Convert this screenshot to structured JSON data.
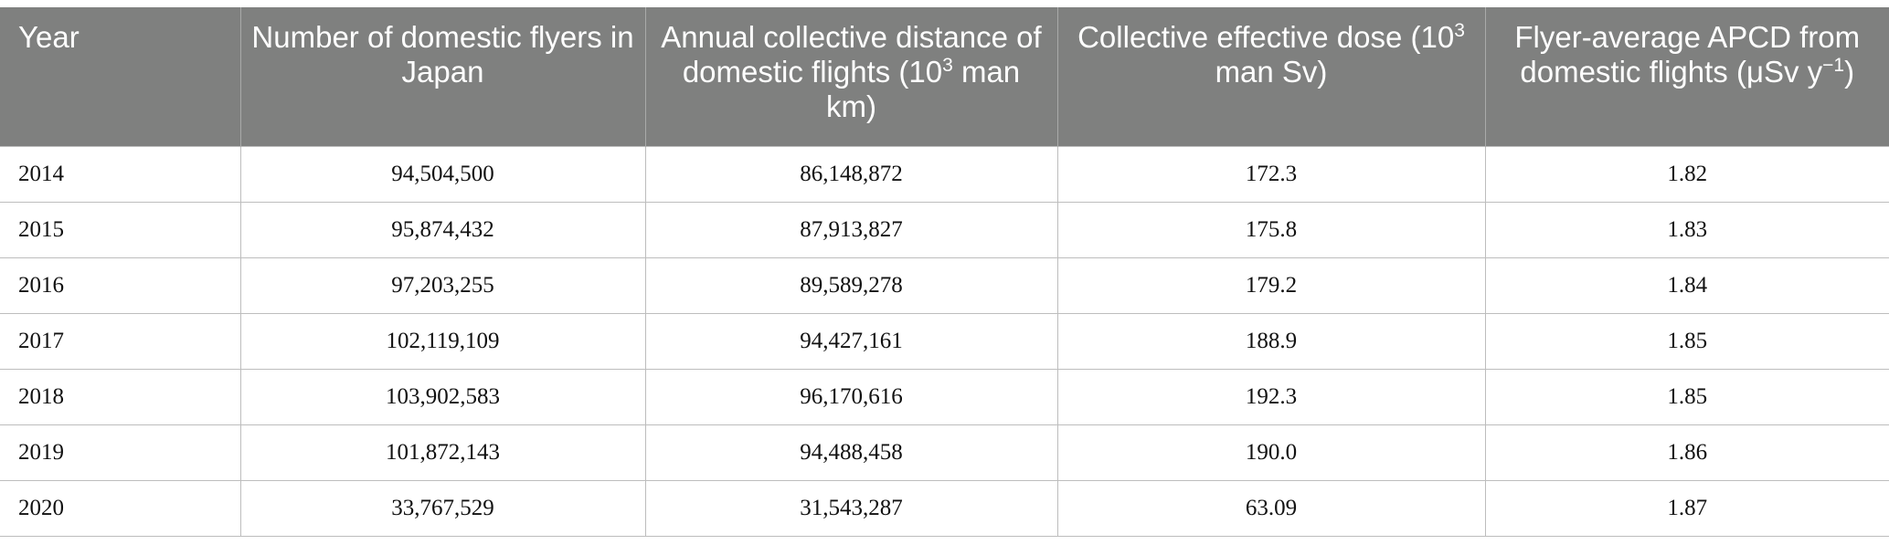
{
  "table": {
    "headers": {
      "year": "Year",
      "flyers": "Number of domestic flyers in Japan",
      "distance_pre": "Annual collective distance of domestic flights (10",
      "distance_sup": "3",
      "distance_post": " man km)",
      "dose_pre": "Collective effective dose (10",
      "dose_sup": "3",
      "dose_post": " man Sv)",
      "apcd_pre": "Flyer-average APCD from domestic flights (μSv y",
      "apcd_sup": "−1",
      "apcd_post": ")"
    },
    "rows": [
      {
        "year": "2014",
        "flyers": "94,504,500",
        "distance": "86,148,872",
        "dose": "172.3",
        "apcd": "1.82"
      },
      {
        "year": "2015",
        "flyers": "95,874,432",
        "distance": "87,913,827",
        "dose": "175.8",
        "apcd": "1.83"
      },
      {
        "year": "2016",
        "flyers": "97,203,255",
        "distance": "89,589,278",
        "dose": "179.2",
        "apcd": "1.84"
      },
      {
        "year": "2017",
        "flyers": "102,119,109",
        "distance": "94,427,161",
        "dose": "188.9",
        "apcd": "1.85"
      },
      {
        "year": "2018",
        "flyers": "103,902,583",
        "distance": "96,170,616",
        "dose": "192.3",
        "apcd": "1.85"
      },
      {
        "year": "2019",
        "flyers": "101,872,143",
        "distance": "94,488,458",
        "dose": "190.0",
        "apcd": "1.86"
      },
      {
        "year": "2020",
        "flyers": "33,767,529",
        "distance": "31,543,287",
        "dose": "63.09",
        "apcd": "1.87"
      }
    ]
  }
}
